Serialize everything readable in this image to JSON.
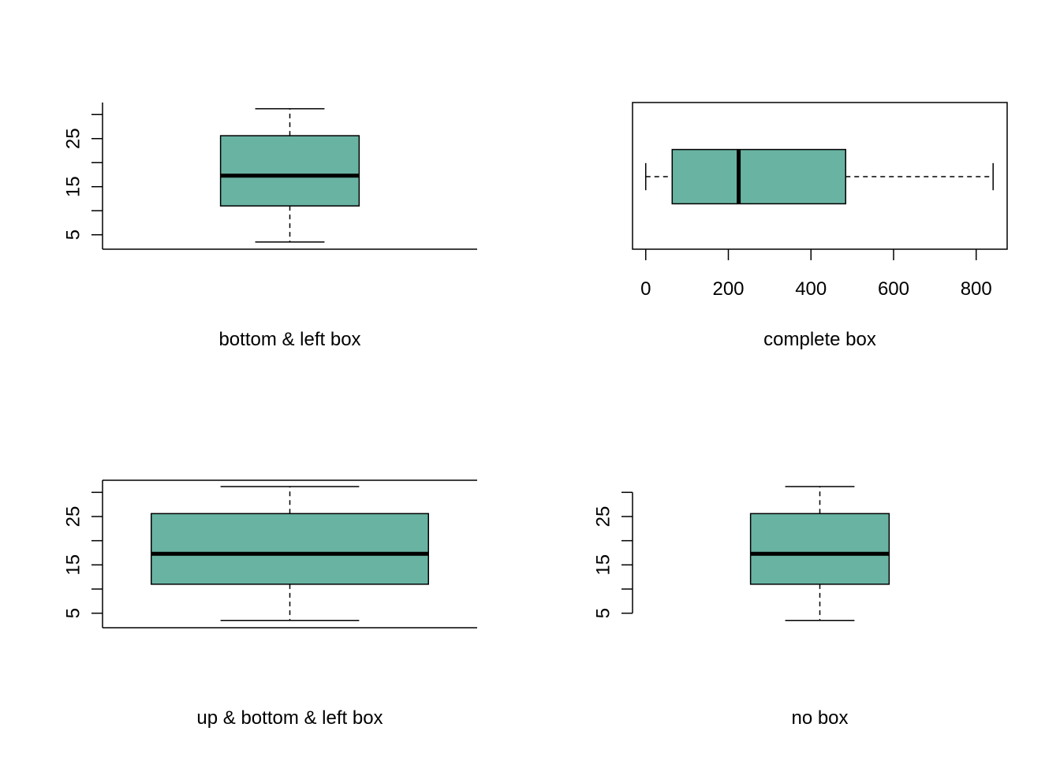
{
  "colors": {
    "box_fill": "#69b3a2",
    "stroke": "#000000",
    "background": "#ffffff"
  },
  "chart_data": [
    {
      "type": "boxplot",
      "orientation": "vertical",
      "frame": "bottom & left",
      "xlabel": "bottom & left box",
      "ylim": [
        2,
        32.5
      ],
      "yticks": [
        5,
        10,
        15,
        20,
        25,
        30
      ],
      "ytick_labels": [
        "5",
        "",
        "15",
        "",
        "25",
        ""
      ],
      "box_width_fraction": 0.37,
      "stats": {
        "min": 3.5,
        "q1": 11,
        "median": 17.3,
        "q3": 25.6,
        "max": 31.2
      }
    },
    {
      "type": "boxplot",
      "orientation": "horizontal",
      "frame": "complete",
      "xlabel": "complete box",
      "xlim": [
        -32,
        875
      ],
      "xticks": [
        0,
        200,
        400,
        600,
        800
      ],
      "xtick_labels": [
        "0",
        "200",
        "400",
        "600",
        "800"
      ],
      "box_height_fraction": 0.37,
      "stats": {
        "min": 0,
        "q1": 64,
        "median": 225,
        "q3": 484,
        "max": 841
      }
    },
    {
      "type": "boxplot",
      "orientation": "vertical",
      "frame": "up & bottom & left",
      "xlabel": "up & bottom & left box",
      "ylim": [
        2,
        32.5
      ],
      "yticks": [
        5,
        10,
        15,
        20,
        25,
        30
      ],
      "ytick_labels": [
        "5",
        "",
        "15",
        "",
        "25",
        ""
      ],
      "box_width_fraction": 0.74,
      "stats": {
        "min": 3.5,
        "q1": 11,
        "median": 17.3,
        "q3": 25.6,
        "max": 31.2
      }
    },
    {
      "type": "boxplot",
      "orientation": "vertical",
      "frame": "none",
      "xlabel": "no box",
      "ylim": [
        2,
        32.5
      ],
      "yticks": [
        5,
        10,
        15,
        20,
        25,
        30
      ],
      "ytick_labels": [
        "5",
        "",
        "15",
        "",
        "25",
        ""
      ],
      "box_width_fraction": 0.37,
      "stats": {
        "min": 3.5,
        "q1": 11,
        "median": 17.3,
        "q3": 25.6,
        "max": 31.2
      }
    }
  ]
}
